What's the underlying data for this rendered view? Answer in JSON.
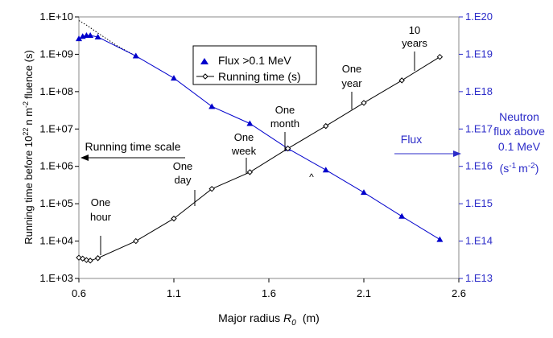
{
  "chart_data": {
    "type": "line",
    "xlabel_main": "Major radius",
    "xlabel_symbol": "R",
    "xlabel_sub": "0",
    "xlabel_unit": "(m)",
    "ylabel_left_a": "Running time before 10",
    "ylabel_left_sup": "22",
    "ylabel_left_b": "n m",
    "ylabel_left_sup2": "-2",
    "ylabel_left_c": "fluence (s)",
    "ylabel_right": {
      "line1": "Neutron",
      "line2": "flux above",
      "line3": "0.1 MeV",
      "line4a": "(s",
      "line4sup": "-1",
      "line4b": "m",
      "line4sup2": "-2",
      "line4c": ")"
    },
    "xlim": [
      0.6,
      2.6
    ],
    "x_ticks": [
      0.6,
      1.1,
      1.6,
      2.1,
      2.6
    ],
    "x_tick_labels": [
      "0.6",
      "1.1",
      "1.6",
      "2.1",
      "2.6"
    ],
    "y_left": {
      "scale": "log",
      "lim": [
        1000,
        10000000000
      ],
      "tick_labels": [
        "1.E+03",
        "1.E+04",
        "1.E+05",
        "1.E+06",
        "1.E+07",
        "1.E+08",
        "1.E+09",
        "1.E+10"
      ]
    },
    "y_right": {
      "scale": "log",
      "lim": [
        10000000000000.0,
        1e+20
      ],
      "tick_labels": [
        "1.E13",
        "1.E14",
        "1.E15",
        "1.E16",
        "1.E17",
        "1.E18",
        "1.E19",
        "1.E20"
      ]
    },
    "colors": {
      "flux": "#0000cc",
      "running": "#000000",
      "right_axis": "#2b2bc8"
    },
    "legend": {
      "placement": "top-center",
      "entries": [
        "Flux >0.1 MeV",
        "Running time (s)"
      ]
    },
    "series": [
      {
        "name": "Flux >0.1 MeV",
        "axis": "right",
        "marker": "triangle",
        "x": [
          0.6,
          0.62,
          0.64,
          0.66,
          0.7,
          0.9,
          1.1,
          1.3,
          1.5,
          1.7,
          1.9,
          2.1,
          2.3,
          2.5
        ],
        "y": [
          2.6e+19,
          3e+19,
          3.2e+19,
          3.2e+19,
          2.9e+19,
          9e+18,
          2.3e+18,
          4e+17,
          1.4e+17,
          3e+16,
          8000000000000000.0,
          2000000000000000.0,
          460000000000000.0,
          110000000000000.0
        ]
      },
      {
        "name": "Running time (s)",
        "axis": "left",
        "marker": "diamond-open",
        "x": [
          0.6,
          0.62,
          0.64,
          0.66,
          0.7,
          0.9,
          1.1,
          1.3,
          1.5,
          1.7,
          1.9,
          2.1,
          2.3,
          2.5
        ],
        "y": [
          3600,
          3400,
          3100,
          3000,
          3500,
          10000,
          40000,
          250000,
          700000,
          3000000,
          12000000,
          50000000,
          200000000,
          850000000
        ]
      }
    ],
    "extrapolation": {
      "style": "dotted",
      "axis": "left",
      "x": [
        0.6,
        0.65,
        0.7,
        0.8,
        0.9
      ],
      "y": [
        8000000000,
        5600000000,
        3700000000,
        1700000000,
        900000000
      ]
    },
    "annotations": {
      "one_hour": {
        "line1": "One",
        "line2": "hour"
      },
      "one_day": {
        "line1": "One",
        "line2": "day"
      },
      "one_week": {
        "line1": "One",
        "line2": "week"
      },
      "one_month": {
        "line1": "One",
        "line2": "month"
      },
      "one_year": {
        "line1": "One",
        "line2": "year"
      },
      "ten_years": {
        "line1": "10",
        "line2": "years"
      },
      "running_scale": "Running time scale",
      "flux_arrow": "Flux"
    },
    "stray_mark": "^"
  }
}
